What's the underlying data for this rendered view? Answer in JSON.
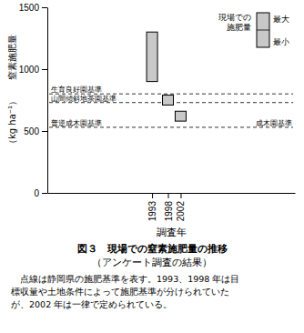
{
  "chart_data": {
    "type": "range_bar",
    "title": "図３　現場での窒素施肥量の推移",
    "subtitle": "（アンケート調査の結果）",
    "xlabel": "調査年",
    "ylabel": [
      "窒素施肥量",
      "（kg ha⁻¹）"
    ],
    "x": [
      1993,
      1998,
      2002
    ],
    "low": [
      900,
      710,
      580
    ],
    "high": [
      1300,
      790,
      660
    ],
    "color": "#c8c8c8",
    "xlim": [
      1960,
      2038
    ],
    "xticks": [
      1993,
      1998,
      2002
    ],
    "ylim": [
      0,
      1500
    ],
    "yticks": [
      0,
      500,
      1000,
      1500
    ],
    "grid": false,
    "hlines": [
      {
        "y": 800,
        "label": "生育良好園基準"
      },
      {
        "y": 730,
        "label": "山間傾斜地茶園基準"
      },
      {
        "y": 530,
        "label": "普逆成木園基準",
        "label_right": "成木園基準"
      }
    ],
    "legend": "upper right",
    "legend_title": [
      "現場での",
      "施肥量"
    ],
    "legend_labels": [
      "最大",
      "最小"
    ],
    "annotations": [
      "点線は静岡県の施肥基準を表す。1993、1998 年は目",
      "標収量や土地条件によって施肥基準が分けられていた",
      "が、2002 年は一律で定められている。"
    ]
  }
}
